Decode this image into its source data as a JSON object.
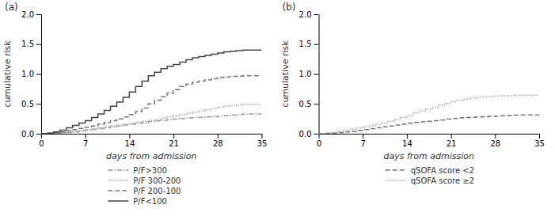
{
  "chart_data": [
    {
      "type": "step",
      "title": "(a)",
      "x_label": "days from admission",
      "y_label": "cumulative risk",
      "xlim": [
        0,
        35
      ],
      "ylim": [
        0.0,
        2.0
      ],
      "xticks": [
        0,
        7,
        14,
        21,
        28,
        35
      ],
      "yticks": [
        {
          "value": 0.0,
          "label": "0.0"
        },
        0.5,
        {
          "value": 1.0,
          "label": "1.0"
        },
        1.5,
        {
          "value": 2.0,
          "label": "2.0"
        }
      ],
      "legend": "bottom",
      "x": [
        0,
        1,
        2,
        3,
        4,
        5,
        6,
        7,
        8,
        9,
        10,
        11,
        12,
        13,
        14,
        15,
        16,
        17,
        18,
        19,
        20,
        21,
        22,
        23,
        24,
        25,
        26,
        27,
        28,
        29,
        30,
        31,
        32,
        33,
        34,
        35
      ],
      "series": [
        {
          "name": "P/F>300",
          "color": "#999999",
          "line_style": "densely_dashed",
          "values": [
            0,
            0.005,
            0.01,
            0.015,
            0.02,
            0.03,
            0.04,
            0.055,
            0.07,
            0.085,
            0.1,
            0.115,
            0.13,
            0.145,
            0.16,
            0.175,
            0.19,
            0.205,
            0.215,
            0.225,
            0.235,
            0.245,
            0.255,
            0.265,
            0.27,
            0.275,
            0.28,
            0.285,
            0.29,
            0.3,
            0.31,
            0.32,
            0.33,
            0.33,
            0.33,
            0.33
          ]
        },
        {
          "name": "P/F 300-200",
          "color": "#aaaaaa",
          "line_style": "densely_dotted",
          "values": [
            0,
            0.005,
            0.01,
            0.02,
            0.03,
            0.04,
            0.055,
            0.07,
            0.085,
            0.1,
            0.115,
            0.13,
            0.145,
            0.16,
            0.175,
            0.195,
            0.21,
            0.225,
            0.24,
            0.26,
            0.28,
            0.3,
            0.32,
            0.34,
            0.36,
            0.38,
            0.4,
            0.42,
            0.44,
            0.46,
            0.47,
            0.48,
            0.49,
            0.49,
            0.49,
            0.49
          ]
        },
        {
          "name": "P/F 200-100",
          "color": "#777777",
          "line_style": "dashed",
          "values": [
            0,
            0.005,
            0.015,
            0.03,
            0.05,
            0.07,
            0.09,
            0.11,
            0.13,
            0.16,
            0.19,
            0.22,
            0.25,
            0.28,
            0.32,
            0.37,
            0.43,
            0.5,
            0.56,
            0.62,
            0.68,
            0.74,
            0.79,
            0.83,
            0.86,
            0.88,
            0.9,
            0.92,
            0.94,
            0.95,
            0.96,
            0.965,
            0.97,
            0.97,
            0.97,
            0.97
          ]
        },
        {
          "name": "P/F<100",
          "color": "#444444",
          "line_style": "solid",
          "values": [
            0,
            0.01,
            0.03,
            0.06,
            0.1,
            0.14,
            0.18,
            0.22,
            0.27,
            0.33,
            0.39,
            0.46,
            0.53,
            0.61,
            0.7,
            0.79,
            0.88,
            0.97,
            1.03,
            1.09,
            1.13,
            1.16,
            1.2,
            1.24,
            1.27,
            1.29,
            1.31,
            1.33,
            1.35,
            1.37,
            1.38,
            1.39,
            1.4,
            1.4,
            1.4,
            1.4
          ]
        }
      ]
    },
    {
      "type": "step",
      "title": "(b)",
      "x_label": "days from admission",
      "y_label": "cumulative risk",
      "xlim": [
        0,
        35
      ],
      "ylim": [
        0.0,
        2.0
      ],
      "xticks": [
        0,
        7,
        14,
        21,
        28,
        35
      ],
      "yticks": [
        {
          "value": 0.0,
          "label": "0.0"
        },
        0.5,
        {
          "value": 1.0,
          "label": "1.0"
        },
        1.5,
        {
          "value": 2.0,
          "label": "2.0"
        }
      ],
      "legend": "bottom",
      "x": [
        0,
        1,
        2,
        3,
        4,
        5,
        6,
        7,
        8,
        9,
        10,
        11,
        12,
        13,
        14,
        15,
        16,
        17,
        18,
        19,
        20,
        21,
        22,
        23,
        24,
        25,
        26,
        27,
        28,
        29,
        30,
        31,
        32,
        33,
        34,
        35
      ],
      "series": [
        {
          "name": "qSOFA score <2",
          "color": "#777777",
          "line_style": "dashed",
          "values": [
            0,
            0.005,
            0.01,
            0.02,
            0.03,
            0.04,
            0.055,
            0.07,
            0.085,
            0.1,
            0.115,
            0.13,
            0.145,
            0.16,
            0.175,
            0.19,
            0.2,
            0.21,
            0.22,
            0.23,
            0.245,
            0.255,
            0.265,
            0.27,
            0.275,
            0.28,
            0.285,
            0.29,
            0.295,
            0.3,
            0.305,
            0.31,
            0.315,
            0.315,
            0.315,
            0.315
          ]
        },
        {
          "name": "qSOFA score ≥2",
          "color": "#aaaaaa",
          "line_style": "densely_dotted",
          "values": [
            0,
            0.01,
            0.02,
            0.04,
            0.06,
            0.08,
            0.1,
            0.12,
            0.14,
            0.16,
            0.18,
            0.21,
            0.24,
            0.27,
            0.3,
            0.35,
            0.38,
            0.41,
            0.44,
            0.48,
            0.51,
            0.54,
            0.56,
            0.58,
            0.6,
            0.61,
            0.62,
            0.62,
            0.63,
            0.635,
            0.64,
            0.645,
            0.645,
            0.645,
            0.645,
            0.645
          ]
        }
      ]
    }
  ]
}
